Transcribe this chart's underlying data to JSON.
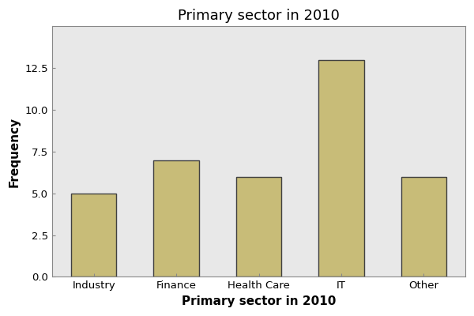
{
  "title": "Primary sector in 2010",
  "xlabel": "Primary sector in 2010",
  "ylabel": "Frequency",
  "categories": [
    "Industry",
    "Finance",
    "Health Care",
    "IT",
    "Other"
  ],
  "values": [
    5,
    7,
    6,
    13,
    6
  ],
  "bar_color": "#C8BC78",
  "bar_edge_color": "#404040",
  "bar_edge_width": 1.0,
  "ylim": [
    0,
    15
  ],
  "yticks": [
    0.0,
    2.5,
    5.0,
    7.5,
    10.0,
    12.5
  ],
  "plot_bg_color": "#E8E8E8",
  "figure_bg_color": "#FFFFFF",
  "title_fontsize": 13,
  "label_fontsize": 11,
  "tick_fontsize": 9.5,
  "bar_width": 0.55,
  "spine_color": "#888888"
}
